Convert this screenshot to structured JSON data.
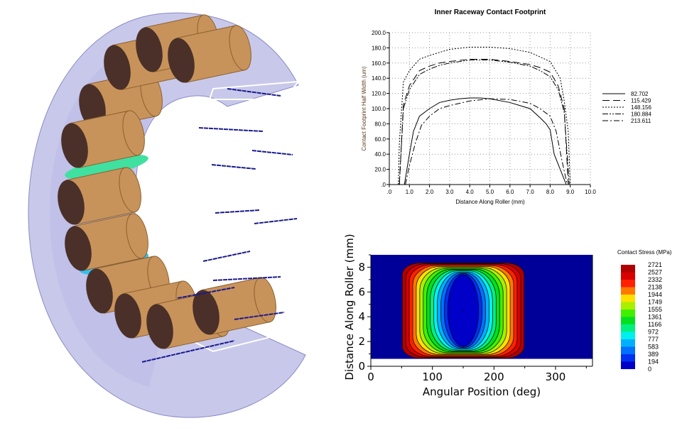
{
  "chart_data": [
    {
      "type": "line",
      "title": "Inner Raceway Contact Footprint",
      "xlabel": "Distance Along Roller (mm)",
      "ylabel": "Contact Footprint Half Width (um)",
      "xlim": [
        0,
        10
      ],
      "ylim": [
        0,
        200
      ],
      "xticks": [
        ".0",
        "1.0",
        "2.0",
        "3.0",
        "4.0",
        "5.0",
        "6.0",
        "7.0",
        "8.0",
        "9.0",
        "10.0"
      ],
      "yticks": [
        ".0",
        "20.0",
        "40.0",
        "60.0",
        "80.0",
        "100.0",
        "120.0",
        "140.0",
        "160.0",
        "180.0",
        "200.0"
      ],
      "grid": true,
      "legend_position": "right",
      "series": [
        {
          "name": "82.702",
          "style": "solid",
          "x": [
            0.75,
            1.0,
            1.2,
            1.5,
            2.0,
            2.5,
            3.0,
            3.5,
            4.0,
            4.5,
            5.0,
            6.0,
            6.5,
            7.0,
            7.5,
            7.8,
            8.0,
            8.2,
            8.5,
            8.8
          ],
          "y": [
            0,
            40,
            70,
            90,
            100,
            108,
            111,
            113,
            114,
            114,
            113,
            108,
            104,
            100,
            88,
            80,
            72,
            40,
            20,
            0
          ]
        },
        {
          "name": "115.429",
          "style": "longdash",
          "x": [
            0.5,
            0.7,
            1.0,
            1.5,
            2.0,
            2.5,
            3.0,
            4.0,
            5.0,
            6.0,
            7.0,
            7.5,
            8.0,
            8.4,
            8.7,
            8.9
          ],
          "y": [
            0,
            105,
            130,
            150,
            156,
            160,
            162,
            165,
            165,
            162,
            158,
            154,
            148,
            130,
            100,
            0
          ],
          "dash": "10,5"
        },
        {
          "name": "148.156",
          "style": "shortdash",
          "x": [
            0.45,
            0.5,
            0.7,
            1.0,
            1.5,
            2.0,
            3.0,
            4.0,
            5.0,
            6.0,
            7.0,
            7.5,
            8.0,
            8.5,
            8.7,
            8.9,
            9.0
          ],
          "y": [
            0,
            55,
            135,
            150,
            165,
            170,
            178,
            181,
            181,
            179,
            174,
            168,
            162,
            140,
            110,
            70,
            0
          ],
          "dash": "2,2"
        },
        {
          "name": "180.884",
          "style": "dashdotdot",
          "x": [
            0.5,
            0.7,
            1.0,
            1.5,
            2.0,
            2.5,
            3.0,
            4.0,
            5.0,
            6.0,
            7.0,
            7.5,
            8.0,
            8.4,
            8.7,
            8.95
          ],
          "y": [
            0,
            100,
            125,
            145,
            152,
            157,
            160,
            164,
            164,
            161,
            156,
            150,
            142,
            125,
            95,
            0
          ],
          "dash": "8,2,2,2,2,2"
        },
        {
          "name": "213.611",
          "style": "dashdot",
          "x": [
            0.8,
            1.0,
            1.3,
            1.6,
            2.0,
            2.5,
            3.0,
            4.0,
            5.0,
            6.0,
            7.0,
            7.5,
            8.0,
            8.3,
            8.6,
            8.85
          ],
          "y": [
            0,
            25,
            55,
            78,
            90,
            100,
            104,
            110,
            113,
            112,
            107,
            100,
            90,
            70,
            30,
            0
          ],
          "dash": "8,3,2,3"
        }
      ]
    },
    {
      "type": "heatmap",
      "title": "Contact Stress (MPa)",
      "xlabel": "Angular Position (deg)",
      "ylabel": "Distance Along Roller (mm)",
      "xlim": [
        0,
        360
      ],
      "ylim": [
        0,
        9
      ],
      "xticks": [
        "0",
        "100",
        "200",
        "300"
      ],
      "yticks": [
        "0",
        "2",
        "4",
        "6",
        "8"
      ],
      "peak_location": {
        "angle": 150,
        "distance": 4.5
      },
      "legend_position": "right",
      "levels": [
        "2721",
        "2527",
        "2332",
        "2138",
        "1944",
        "1749",
        "1555",
        "1361",
        "1166",
        "972",
        "777",
        "583",
        "389",
        "194",
        "0"
      ],
      "colors": [
        "#b00000",
        "#d80000",
        "#ff2000",
        "#ff7800",
        "#ffe000",
        "#a8f000",
        "#40f000",
        "#00e020",
        "#00f080",
        "#00f0f0",
        "#00b0ff",
        "#0070ff",
        "#0030f0",
        "#0000c8"
      ],
      "background_color": "#000099"
    }
  ],
  "scene": {
    "ring_color": "#9a9ad8",
    "roller_color": "#c8935a",
    "roller_end_color": "#4a3028",
    "load_vector_color": "#1a1a90"
  }
}
